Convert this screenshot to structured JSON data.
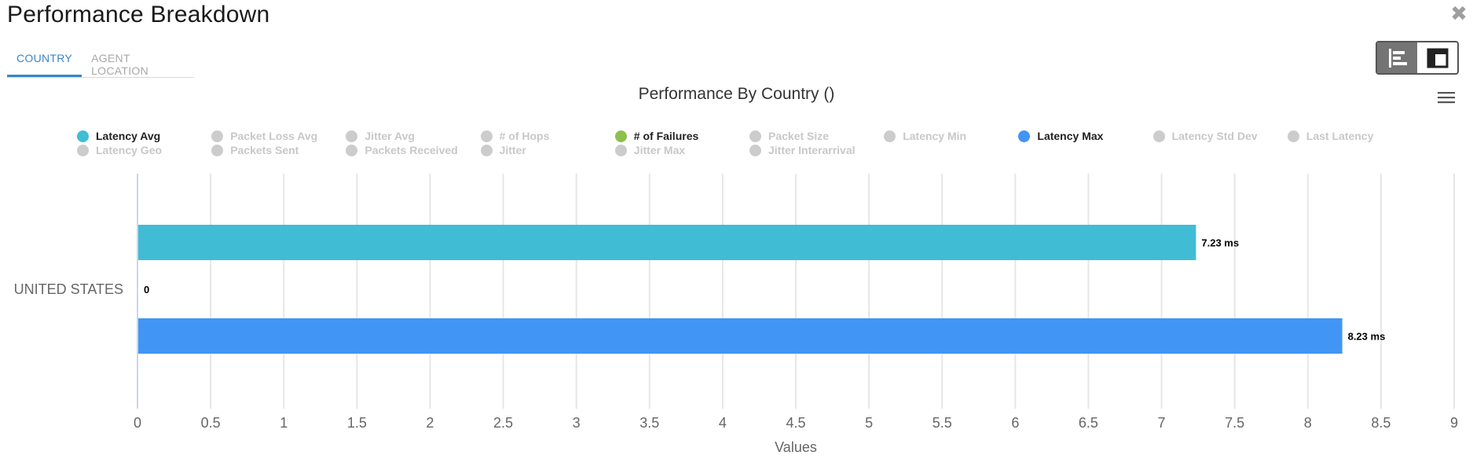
{
  "window": {
    "title": "Performance Breakdown",
    "close_icon": "close-icon"
  },
  "tabs": [
    {
      "label": "COUNTRY",
      "active": true
    },
    {
      "label": "AGENT LOCATION",
      "active": false
    }
  ],
  "view_toggle": [
    {
      "icon": "bar-chart-icon",
      "active": true
    },
    {
      "icon": "table-layout-icon",
      "active": false
    }
  ],
  "chart_menu_icon": "hamburger-menu-icon",
  "legend": [
    {
      "label": "Latency Avg",
      "color": "#40bcd5",
      "active": true
    },
    {
      "label": "Packet Loss Avg",
      "color": "#cccccc",
      "active": false
    },
    {
      "label": "Jitter Avg",
      "color": "#cccccc",
      "active": false
    },
    {
      "label": "# of Hops",
      "color": "#cccccc",
      "active": false
    },
    {
      "label": "# of Failures",
      "color": "#8dc04a",
      "active": true
    },
    {
      "label": "Packet Size",
      "color": "#cccccc",
      "active": false
    },
    {
      "label": "Latency Min",
      "color": "#cccccc",
      "active": false
    },
    {
      "label": "Latency Max",
      "color": "#4195f4",
      "active": true
    },
    {
      "label": "Latency Std Dev",
      "color": "#cccccc",
      "active": false
    },
    {
      "label": "Last Latency",
      "color": "#cccccc",
      "active": false
    },
    {
      "label": "Latency Geo",
      "color": "#cccccc",
      "active": false
    },
    {
      "label": "Packets Sent",
      "color": "#cccccc",
      "active": false
    },
    {
      "label": "Packets Received",
      "color": "#cccccc",
      "active": false
    },
    {
      "label": "Jitter",
      "color": "#cccccc",
      "active": false
    },
    {
      "label": "Jitter Max",
      "color": "#cccccc",
      "active": false
    },
    {
      "label": "Jitter Interarrival",
      "color": "#cccccc",
      "active": false
    }
  ],
  "chart_data": {
    "type": "bar",
    "orientation": "horizontal",
    "title": "Performance By Country ()",
    "categories": [
      "UNITED STATES"
    ],
    "series": [
      {
        "name": "Latency Avg",
        "values": [
          7.23
        ],
        "label": "7.23 ms",
        "color": "#40bcd5"
      },
      {
        "name": "# of Failures",
        "values": [
          0
        ],
        "label": "0",
        "color": "#8dc04a"
      },
      {
        "name": "Latency Max",
        "values": [
          8.23
        ],
        "label": "8.23 ms",
        "color": "#4195f4"
      }
    ],
    "xlabel": "Values",
    "ylabel": "",
    "xlim": [
      0,
      9
    ],
    "x_ticks": [
      "0",
      "0.5",
      "1",
      "1.5",
      "2",
      "2.5",
      "3",
      "3.5",
      "4",
      "4.5",
      "5",
      "5.5",
      "6",
      "6.5",
      "7",
      "7.5",
      "8",
      "8.5",
      "9"
    ],
    "grid": true,
    "legend_position": "top"
  }
}
